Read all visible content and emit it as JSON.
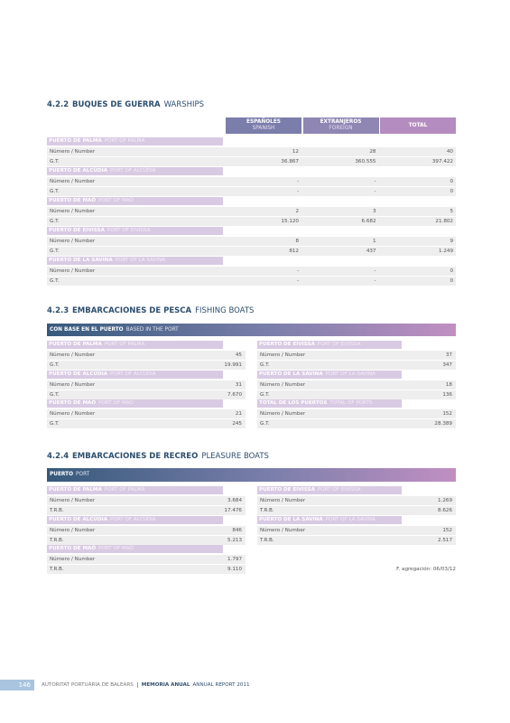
{
  "sections": [
    {
      "number": "4.2.2",
      "title": "BUQUES DE GUERRA",
      "title_en": "WARSHIPS",
      "columns": [
        {
          "name": "ESPAÑOLES",
          "name_en": "SPANISH"
        },
        {
          "name": "EXTRANJEROS",
          "name_en": "FOREIGN"
        },
        {
          "name": "TOTAL"
        }
      ],
      "groups": [
        {
          "name": "PUERTO DE PALMA",
          "name_en": "PORT OF PALMA",
          "rows": [
            {
              "label": "Número / Number",
              "values": [
                "12",
                "28",
                "40"
              ]
            },
            {
              "label": "G.T.",
              "values": [
                "36.867",
                "360.555",
                "397.422"
              ]
            }
          ]
        },
        {
          "name": "PUERTO DE ALCÚDIA",
          "name_en": "PORT OF ALCÚDIA",
          "rows": [
            {
              "label": "Número / Number",
              "values": [
                "-",
                "-",
                "0"
              ]
            },
            {
              "label": "G.T.",
              "values": [
                "-",
                "-",
                "0"
              ]
            }
          ]
        },
        {
          "name": "PUERTO DE MAÓ",
          "name_en": "PORT OF MAÓ",
          "rows": [
            {
              "label": "Número / Number",
              "values": [
                "2",
                "3",
                "5"
              ]
            },
            {
              "label": "G.T.",
              "values": [
                "15.120",
                "6.682",
                "21.802"
              ]
            }
          ]
        },
        {
          "name": "PUERTO DE EIVISSA",
          "name_en": "PORT OF EIVISSA",
          "rows": [
            {
              "label": "Número / Number",
              "values": [
                "8",
                "1",
                "9"
              ]
            },
            {
              "label": "G.T.",
              "values": [
                "812",
                "437",
                "1.249"
              ]
            }
          ]
        },
        {
          "name": "PUERTO DE LA SAVINA",
          "name_en": "PORT OF LA SAVINA",
          "rows": [
            {
              "label": "Número / Number",
              "values": [
                "-",
                "-",
                "0"
              ]
            },
            {
              "label": "G.T.",
              "values": [
                "-",
                "-",
                "0"
              ]
            }
          ]
        }
      ]
    },
    {
      "number": "4.2.3",
      "title": "EMBARCACIONES DE PESCA",
      "title_en": "FISHING BOATS",
      "banner": {
        "text": "CON BASE EN EL PUERTO",
        "text_en": "BASED IN THE PORT"
      },
      "left_groups": [
        {
          "name": "PUERTO DE PALMA",
          "name_en": "PORT OF PALMA",
          "rows": [
            {
              "label": "Número / Number",
              "value": "45"
            },
            {
              "label": "G.T.",
              "value": "19.991"
            }
          ]
        },
        {
          "name": "PUERTO DE ALCÚDIA",
          "name_en": "PORT OF ALCÚDIA",
          "rows": [
            {
              "label": "Número / Number",
              "value": "31"
            },
            {
              "label": "G.T.",
              "value": "7.670"
            }
          ]
        },
        {
          "name": "PUERTO DE MAÓ",
          "name_en": "PORT OF MAÓ",
          "rows": [
            {
              "label": "Número / Number",
              "value": "21"
            },
            {
              "label": "G.T.",
              "value": "245"
            }
          ]
        }
      ],
      "right_groups": [
        {
          "name": "PUERTO DE EIVISSA",
          "name_en": "PORT OF EIVISSA",
          "rows": [
            {
              "label": "Número / Number",
              "value": "37"
            },
            {
              "label": "G.T.",
              "value": "347"
            }
          ]
        },
        {
          "name": "PUERTO DE LA SAVINA",
          "name_en": "PORT OF LA SAVINA",
          "rows": [
            {
              "label": "Número / Number",
              "value": "18"
            },
            {
              "label": "G.T.",
              "value": "136"
            }
          ]
        },
        {
          "name": "TOTAL DE LOS PUERTOS",
          "name_en": "TOTAL OF PORTS",
          "rows": [
            {
              "label": "Número / Number",
              "value": "152"
            },
            {
              "label": "G.T.",
              "value": "28.389"
            }
          ]
        }
      ]
    },
    {
      "number": "4.2.4",
      "title": "EMBARCACIONES DE RECREO",
      "title_en": "PLEASURE BOATS",
      "banner": {
        "text": "PUERTO",
        "text_en": "PORT"
      },
      "left_groups": [
        {
          "name": "PUERTO DE PALMA",
          "name_en": "PORT OF PALMA",
          "rows": [
            {
              "label": "Número / Number",
              "value": "3.684"
            },
            {
              "label": "T.R.B.",
              "value": "17.476"
            }
          ]
        },
        {
          "name": "PUERTO DE ALCÚDIA",
          "name_en": "PORT OF ALCÚDIA",
          "rows": [
            {
              "label": "Número / Number",
              "value": "846"
            },
            {
              "label": "T.R.B.",
              "value": "5.213"
            }
          ]
        },
        {
          "name": "PUERTO DE MAÓ",
          "name_en": "PORT OF MAÓ",
          "rows": [
            {
              "label": "Número / Number",
              "value": "1.797"
            },
            {
              "label": "T.R.B.",
              "value": "9.110"
            }
          ]
        }
      ],
      "right_groups": [
        {
          "name": "PUERTO DE EIVISSA",
          "name_en": "PORT OF EIVISSA",
          "rows": [
            {
              "label": "Número / Number",
              "value": "1.269"
            },
            {
              "label": "T.R.B.",
              "value": "8.626"
            }
          ]
        },
        {
          "name": "PUERTO DE LA SAVINA",
          "name_en": "PORT OF LA SAVINA",
          "rows": [
            {
              "label": "Número / Number",
              "value": "152"
            },
            {
              "label": "T.R.B.",
              "value": "2.517"
            }
          ]
        }
      ],
      "note": "F. agregación: 06/03/12"
    }
  ],
  "footer": {
    "page": "146",
    "organization": "AUTORITAT PORTUÀRIA DE BALEARS",
    "report": "MEMORIA ANUAL",
    "report_en": "ANNUAL REPORT 2011"
  }
}
